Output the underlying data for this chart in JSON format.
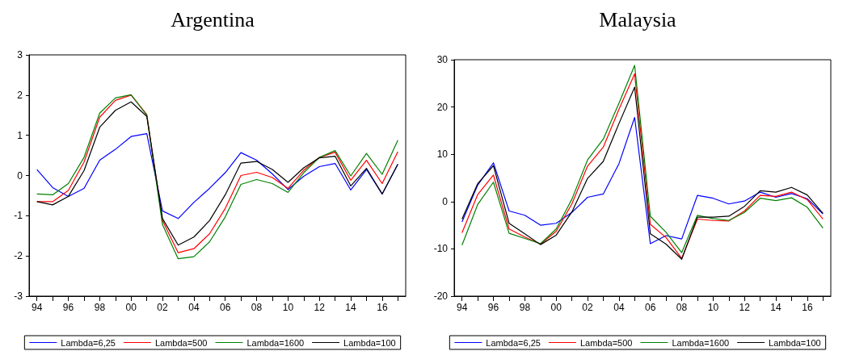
{
  "chart_data": [
    {
      "type": "line",
      "title": "Argentina",
      "legend": "bottom",
      "grid": false,
      "categories": [
        "94",
        null,
        "96",
        null,
        "98",
        null,
        "00",
        null,
        "02",
        null,
        "04",
        null,
        "06",
        null,
        "08",
        null,
        "10",
        null,
        "12",
        null,
        "14",
        null,
        "16",
        null
      ],
      "ylim": [
        -3,
        3
      ],
      "yticks": [
        -3,
        -2,
        -1,
        0,
        1,
        2,
        3
      ],
      "series": [
        {
          "name": "Lambda=6,25",
          "color": "#0000ff",
          "values": [
            0.15,
            -0.3,
            -0.52,
            -0.32,
            0.38,
            0.65,
            0.97,
            1.04,
            -0.88,
            -1.07,
            -0.67,
            -0.32,
            0.07,
            0.57,
            0.38,
            0.04,
            -0.35,
            -0.02,
            0.22,
            0.3,
            -0.36,
            0.15,
            -0.46,
            0.28
          ]
        },
        {
          "name": "Lambda=500",
          "color": "#ff0000",
          "values": [
            -0.65,
            -0.65,
            -0.37,
            0.33,
            1.45,
            1.87,
            2.0,
            1.52,
            -1.12,
            -1.92,
            -1.82,
            -1.45,
            -0.82,
            0.0,
            0.08,
            -0.05,
            -0.32,
            0.13,
            0.45,
            0.58,
            -0.12,
            0.38,
            -0.2,
            0.59
          ]
        },
        {
          "name": "Lambda=1600",
          "color": "#008000",
          "values": [
            -0.46,
            -0.48,
            -0.2,
            0.45,
            1.55,
            1.93,
            2.01,
            1.5,
            -1.22,
            -2.07,
            -2.02,
            -1.65,
            -1.03,
            -0.22,
            -0.1,
            -0.2,
            -0.42,
            0.07,
            0.45,
            0.62,
            -0.01,
            0.55,
            0.03,
            0.88
          ]
        },
        {
          "name": "Lambda=100",
          "color": "#000000",
          "values": [
            -0.65,
            -0.73,
            -0.52,
            0.12,
            1.2,
            1.62,
            1.83,
            1.47,
            -1.07,
            -1.73,
            -1.53,
            -1.12,
            -0.48,
            0.31,
            0.35,
            0.15,
            -0.17,
            0.19,
            0.44,
            0.48,
            -0.26,
            0.18,
            -0.46,
            0.28
          ]
        }
      ]
    },
    {
      "type": "line",
      "title": "Malaysia",
      "legend": "bottom",
      "grid": false,
      "categories": [
        "94",
        null,
        "96",
        null,
        "98",
        null,
        "00",
        null,
        "02",
        null,
        "04",
        null,
        "06",
        null,
        "08",
        null,
        "10",
        null,
        "12",
        null,
        "14",
        null,
        "16",
        null
      ],
      "ylim": [
        -20,
        30
      ],
      "yticks": [
        -20,
        -10,
        0,
        10,
        20,
        30
      ],
      "series": [
        {
          "name": "Lambda=6,25",
          "color": "#0000ff",
          "values": [
            -4.3,
            3.5,
            8.2,
            -2.0,
            -2.9,
            -5.0,
            -4.6,
            -2.3,
            0.9,
            1.6,
            8.0,
            17.8,
            -8.9,
            -7.2,
            -7.9,
            1.3,
            0.7,
            -0.5,
            0.1,
            2.0,
            0.9,
            1.7,
            0.6,
            -2.6
          ]
        },
        {
          "name": "Lambda=500",
          "color": "#ff0000",
          "values": [
            -6.6,
            1.5,
            5.6,
            -5.8,
            -7.5,
            -9.0,
            -6.3,
            -0.5,
            7.5,
            11.5,
            19.5,
            27.0,
            -4.8,
            -7.6,
            -12.0,
            -3.7,
            -4.0,
            -4.1,
            -2.0,
            1.3,
            1.1,
            2.0,
            0.4,
            -3.7
          ]
        },
        {
          "name": "Lambda=1600",
          "color": "#008000",
          "values": [
            -9.2,
            -0.6,
            4.1,
            -6.7,
            -7.8,
            -8.9,
            -5.8,
            0.5,
            8.8,
            13.2,
            20.8,
            28.8,
            -3.1,
            -6.5,
            -10.8,
            -2.9,
            -3.6,
            -4.0,
            -2.3,
            0.7,
            0.2,
            0.8,
            -1.2,
            -5.6
          ]
        },
        {
          "name": "Lambda=100",
          "color": "#000000",
          "values": [
            -3.7,
            3.8,
            7.6,
            -4.6,
            -6.8,
            -9.1,
            -7.1,
            -2.2,
            4.9,
            8.5,
            16.5,
            24.2,
            -6.8,
            -9.0,
            -12.2,
            -3.3,
            -3.3,
            -3.1,
            -1.0,
            2.3,
            2.0,
            3.0,
            1.4,
            -2.5
          ]
        }
      ]
    }
  ]
}
